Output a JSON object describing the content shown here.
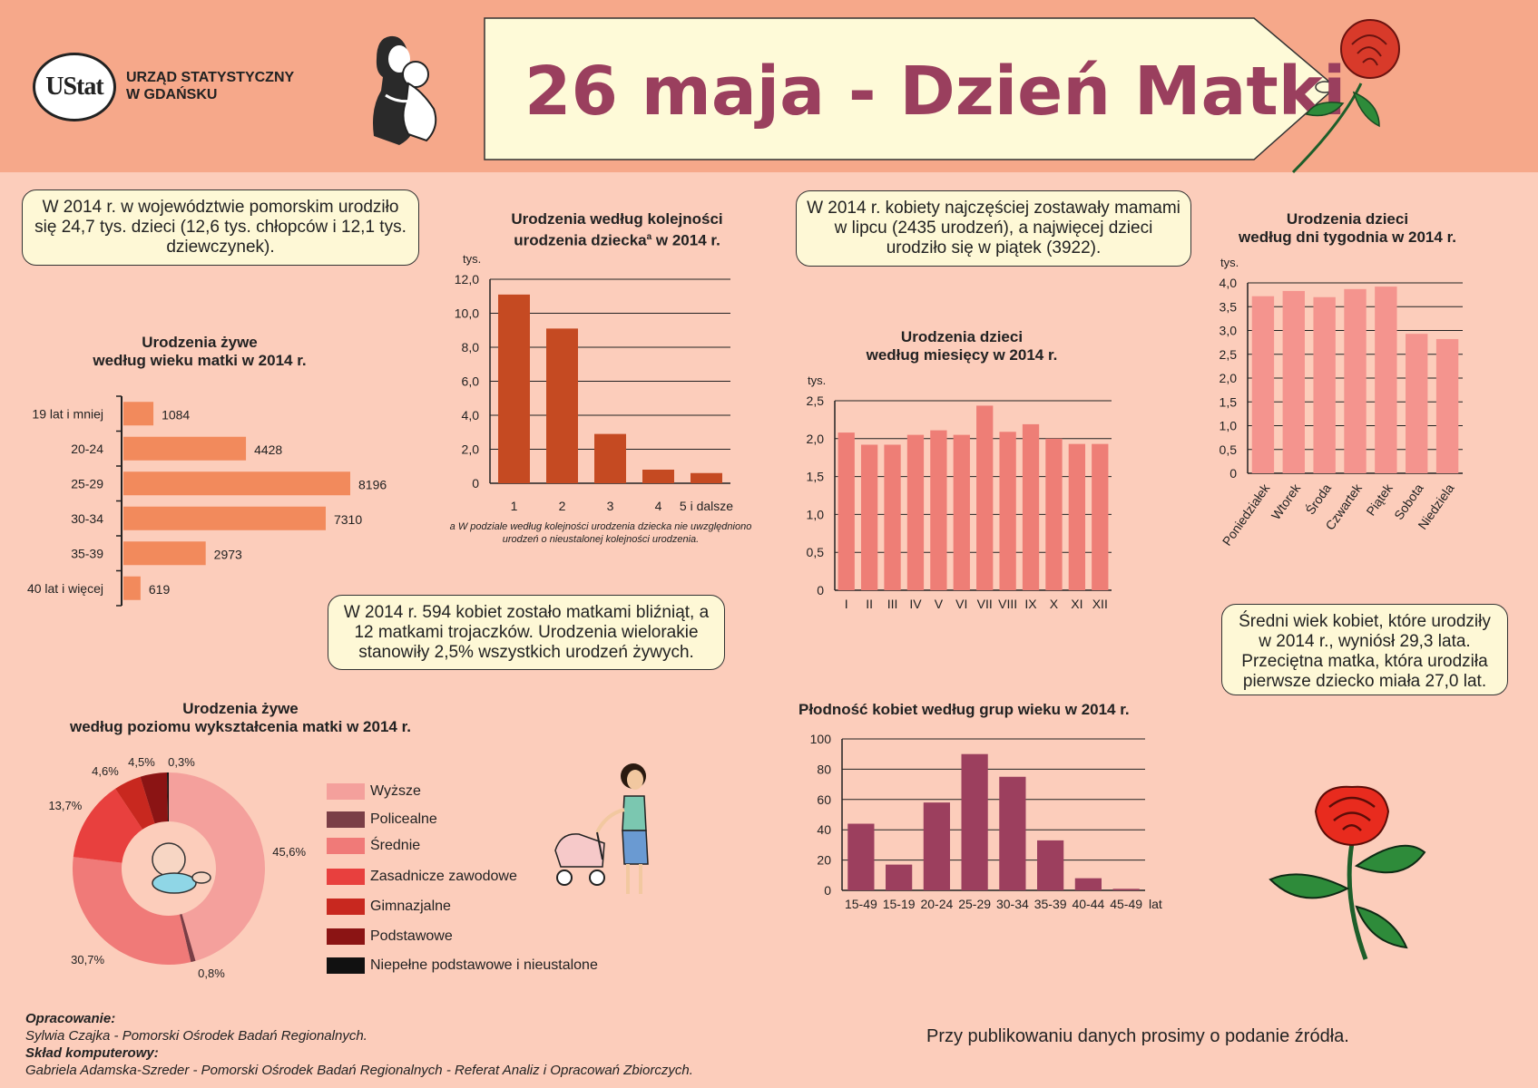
{
  "header": {
    "logo_text": "UStat",
    "org_line1": "URZĄD STATYSTYCZNY",
    "org_line2": "W GDAŃSKU",
    "title": "26 maja - Dzień Matki"
  },
  "notes": {
    "births_total": "W 2014 r. w województwie pomorskim urodziło się 24,7 tys. dzieci (12,6 tys. chłopców i 12,1 tys. dziewczynek).",
    "july_friday": "W 2014 r. kobiety najczęściej zostawały mamami w lipcu (2435 urodzeń), a najwięcej dzieci urodziło się w piątek (3922).",
    "twins": "W 2014 r. 594 kobiet zostało matkami bliźniąt, a 12 matkami trojaczków. Urodzenia wielorakie stanowiły 2,5% wszystkich urodzeń żywych.",
    "avg_age": "Średni wiek kobiet, które urodziły w 2014 r., wyniósł 29,3 lata. Przeciętna matka, która urodziła pierwsze dziecko miała 27,0 lat."
  },
  "footnote_order": "a W podziale według kolejności urodzenia dziecka nie uwzględniono urodzeń o nieustalonej kolejności urodzenia.",
  "credits": {
    "prep_label": "Opracowanie:",
    "prep_text": "Sylwia Czajka - Pomorski Ośrodek Badań Regionalnych.",
    "layout_label": "Skład komputerowy:",
    "layout_text": "Gabriela Adamska-Szreder - Pomorski Ośrodek Badań Regionalnych - Referat Analiz i Opracowań Zbiorczych."
  },
  "source_note": "Przy publikowaniu danych prosimy o podanie źródła.",
  "chart_titles": {
    "age_l1": "Urodzenia żywe",
    "age_l2": "według wieku matki w 2014 r.",
    "order_l1": "Urodzenia według kolejności",
    "order_l2a": "urodzenia dziecka",
    "order_sup": "a",
    "order_l2b": " w 2014 r.",
    "month_l1": "Urodzenia dzieci",
    "month_l2": "według miesięcy w 2014 r.",
    "week_l1": "Urodzenia dzieci",
    "week_l2": "według dni tygodnia w 2014 r.",
    "edu_l1": "Urodzenia żywe",
    "edu_l2": "według poziomu wykształcenia matki w 2014 r.",
    "fert": "Płodność kobiet według grup wieku w 2014 r."
  },
  "colors": {
    "header_bg": "#f6a88a",
    "page_bg": "#fccdbb",
    "title": "#9a3f5e",
    "age_bar": "#f28a5c",
    "order_bar": "#c54a22",
    "month_bar": "#ee7e76",
    "week_bar": "#f4948e",
    "fert_bar": "#9c3f5e"
  },
  "chart_data": [
    {
      "id": "age",
      "type": "bar",
      "orientation": "horizontal",
      "categories": [
        "19 lat i mniej",
        "20-24",
        "25-29",
        "30-34",
        "35-39",
        "40 lat i więcej"
      ],
      "values": [
        1084,
        4428,
        8196,
        7310,
        2973,
        619
      ],
      "labels": [
        "1084",
        "4428",
        "8196",
        "7310",
        "2973",
        "619"
      ],
      "xlim": [
        0,
        9000
      ]
    },
    {
      "id": "order",
      "type": "bar",
      "categories": [
        "1",
        "2",
        "3",
        "4",
        "5 i dalsze"
      ],
      "values": [
        11.1,
        9.1,
        2.9,
        0.8,
        0.6
      ],
      "ylabel": "tys.",
      "ylim": [
        0,
        12
      ],
      "yticks": [
        "0",
        "2,0",
        "4,0",
        "6,0",
        "8,0",
        "10,0",
        "12,0"
      ]
    },
    {
      "id": "month",
      "type": "bar",
      "categories": [
        "I",
        "II",
        "III",
        "IV",
        "V",
        "VI",
        "VII",
        "VIII",
        "IX",
        "X",
        "XI",
        "XII"
      ],
      "values": [
        2.08,
        1.92,
        1.92,
        2.05,
        2.11,
        2.05,
        2.435,
        2.09,
        2.19,
        2.0,
        1.93,
        1.93
      ],
      "ylabel": "tys.",
      "ylim": [
        0,
        2.5
      ],
      "yticks": [
        "0",
        "0,5",
        "1,0",
        "1,5",
        "2,0",
        "2,5"
      ]
    },
    {
      "id": "week",
      "type": "bar",
      "categories": [
        "Poniedziałek",
        "Wtorek",
        "Środa",
        "Czwartek",
        "Piątek",
        "Sobota",
        "Niedziela"
      ],
      "values": [
        3.72,
        3.83,
        3.7,
        3.87,
        3.922,
        2.93,
        2.82
      ],
      "ylabel": "tys.",
      "ylim": [
        0,
        4.0
      ],
      "yticks": [
        "0",
        "0,5",
        "1,0",
        "1,5",
        "2,0",
        "2,5",
        "3,0",
        "3,5",
        "4,0"
      ]
    },
    {
      "id": "education",
      "type": "pie",
      "categories": [
        "Wyższe",
        "Policealne",
        "Średnie",
        "Zasadnicze zawodowe",
        "Gimnazjalne",
        "Podstawowe",
        "Niepełne podstawowe i nieustalone"
      ],
      "values": [
        45.6,
        0.8,
        30.7,
        13.7,
        4.6,
        4.5,
        0.3
      ],
      "labels": [
        "45,6%",
        "0,8%",
        "30,7%",
        "13,7%",
        "4,6%",
        "4,5%",
        "0,3%"
      ],
      "colors": [
        "#f4a09c",
        "#7a3e46",
        "#f07a78",
        "#e8403e",
        "#c8281f",
        "#8b1414",
        "#111111"
      ]
    },
    {
      "id": "fertility",
      "type": "bar",
      "categories": [
        "15-49",
        "15-19",
        "20-24",
        "25-29",
        "30-34",
        "35-39",
        "40-44",
        "45-49"
      ],
      "values": [
        44,
        17,
        58,
        90,
        75,
        33,
        8,
        1
      ],
      "x_unit": "lat",
      "ylim": [
        0,
        100
      ],
      "yticks": [
        "0",
        "20",
        "40",
        "60",
        "80",
        "100"
      ]
    }
  ]
}
